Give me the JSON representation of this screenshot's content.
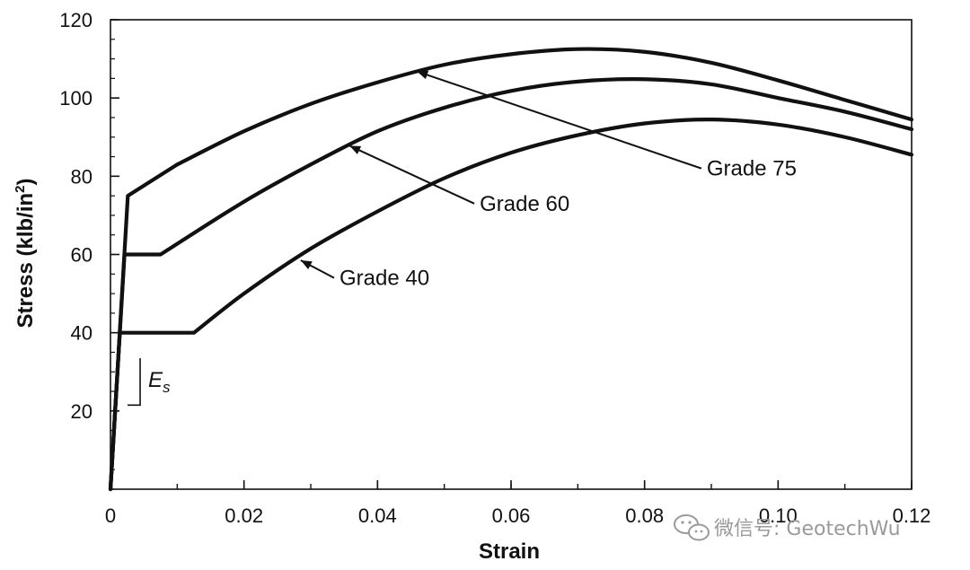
{
  "chart_data": {
    "type": "line",
    "xlabel": "Strain",
    "ylabel_main": "Stress (klb/in",
    "ylabel_sup": "2",
    "ylabel_close": ")",
    "xlim": [
      0,
      0.12
    ],
    "ylim": [
      0,
      120
    ],
    "x_ticks": [
      0,
      0.02,
      0.04,
      0.06,
      0.08,
      0.1,
      0.12
    ],
    "x_tick_labels": [
      "0",
      "0.02",
      "0.04",
      "0.06",
      "0.08",
      "0.10",
      "0.12"
    ],
    "y_ticks": [
      20,
      40,
      60,
      80,
      100,
      120
    ],
    "y_tick_labels": [
      "20",
      "40",
      "60",
      "80",
      "100",
      "120"
    ],
    "x_minor_step": 0.01,
    "y_minor_step": 5,
    "grid": false,
    "series": [
      {
        "name": "Grade 75",
        "x": [
          0,
          0.0026,
          0.01,
          0.02,
          0.03,
          0.04,
          0.05,
          0.06,
          0.07,
          0.08,
          0.09,
          0.1,
          0.11,
          0.12
        ],
        "y": [
          0,
          75,
          83,
          91.5,
          98.5,
          104,
          108.5,
          111.2,
          112.5,
          111.8,
          109,
          104.5,
          99.5,
          94.5
        ]
      },
      {
        "name": "Grade 60",
        "x": [
          0,
          0.0021,
          0.0075,
          0.02,
          0.03,
          0.04,
          0.05,
          0.06,
          0.07,
          0.08,
          0.09,
          0.1,
          0.11,
          0.12
        ],
        "y": [
          0,
          60,
          60,
          73.5,
          83,
          91.5,
          97.5,
          101.8,
          104.2,
          104.8,
          103.5,
          100,
          96.5,
          92
        ]
      },
      {
        "name": "Grade 40",
        "x": [
          0,
          0.0014,
          0.0125,
          0.02,
          0.03,
          0.04,
          0.05,
          0.06,
          0.07,
          0.08,
          0.09,
          0.1,
          0.11,
          0.12
        ],
        "y": [
          0,
          40,
          40,
          50,
          61.5,
          71,
          79.5,
          86,
          90.5,
          93.5,
          94.5,
          93.2,
          90,
          85.5
        ]
      }
    ],
    "annotations": [
      {
        "label": "Grade 75",
        "text_x": 0.0885,
        "text_y": 82,
        "arrow_to": [
          0.0459,
          106.8
        ]
      },
      {
        "label": "Grade 60",
        "text_x": 0.0545,
        "text_y": 73,
        "arrow_to": [
          0.0358,
          87.8
        ]
      },
      {
        "label": "Grade 40",
        "text_x": 0.0335,
        "text_y": 54,
        "arrow_to": [
          0.0285,
          58.5
        ]
      }
    ],
    "modulus_label": "E",
    "modulus_sub": "s",
    "modulus_marker": {
      "x_at": 0.0035,
      "y_bottom": 21.5,
      "y_top": 33.5
    }
  },
  "watermark": {
    "text": "微信号: GeotechWu",
    "icon": "wechat-icon"
  }
}
